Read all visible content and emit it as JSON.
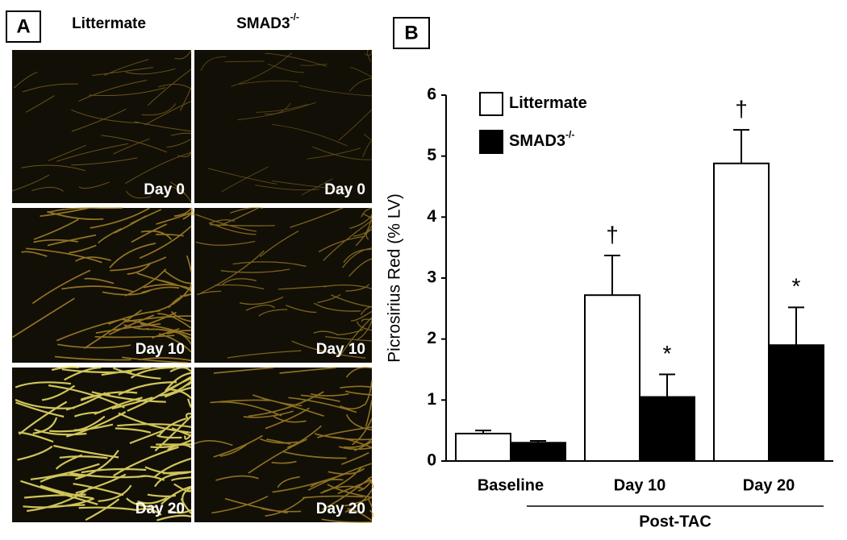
{
  "panel_a": {
    "label": "A",
    "columns": [
      {
        "text": "Littermate"
      },
      {
        "text": "SMAD3",
        "sup": "-/-"
      }
    ],
    "rows": [
      "Day 0",
      "Day 10",
      "Day 20"
    ]
  },
  "chart_data": {
    "type": "bar",
    "panel_label": "B",
    "y_label": "Picrosirius Red (% LV)",
    "categories": [
      "Baseline",
      "Day 10",
      "Day 20"
    ],
    "group_label": "Post-TAC",
    "series": [
      {
        "name": "Littermate",
        "color": "#ffffff",
        "values": [
          0.45,
          2.72,
          4.88
        ],
        "errors": [
          0.05,
          0.65,
          0.55
        ],
        "markers": [
          null,
          "†",
          "†"
        ]
      },
      {
        "name": "SMAD3",
        "name_sup": "-/-",
        "color": "#000000",
        "values": [
          0.3,
          1.05,
          1.9
        ],
        "errors": [
          0.03,
          0.37,
          0.62
        ],
        "markers": [
          null,
          "*",
          "*"
        ]
      }
    ],
    "ylim": [
      0,
      6
    ],
    "yticks": [
      0,
      1,
      2,
      3,
      4,
      5,
      6
    ]
  }
}
